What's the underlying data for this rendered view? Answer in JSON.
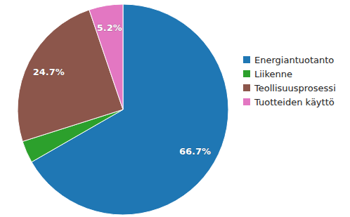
{
  "chart_data": {
    "type": "pie",
    "categories": [
      "Energiantuotanto",
      "Liikenne",
      "Teollisuusprosessi",
      "Tuotteiden käyttö"
    ],
    "values": [
      66.7,
      3.4,
      24.7,
      5.2
    ],
    "value_labels": [
      "66.7%",
      null,
      "24.7%",
      "5.2%"
    ],
    "colors": [
      "#1f77b4",
      "#2ca02c",
      "#8c564b",
      "#e377c2"
    ],
    "data_labels": true,
    "legend": "right"
  }
}
